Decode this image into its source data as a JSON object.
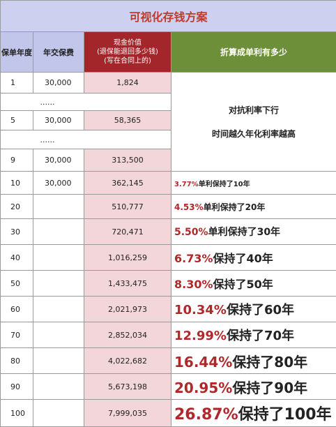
{
  "title": "可视化存钱方案",
  "header": {
    "year": "保单年度",
    "premium": "年交保费",
    "cash": [
      "现金价值",
      "(退保能退回多少钱)",
      "(写在合同上的)"
    ],
    "rate": "折算成单利有多少"
  },
  "rows": [
    {
      "year": "1",
      "premium": "30,000",
      "cash": "1,824"
    },
    {
      "dots": "......"
    },
    {
      "year": "5",
      "premium": "30,000",
      "cash": "58,365"
    },
    {
      "dots": "......"
    },
    {
      "year": "9",
      "premium": "30,000",
      "cash": "313,500"
    },
    {
      "year": "10",
      "premium": "30,000",
      "cash": "362,145",
      "rate": "3.77%",
      "note": "单利保持了10年"
    },
    {
      "year": "20",
      "cash": "510,777",
      "rate": "4.53%",
      "note": "单利保持了20年"
    },
    {
      "year": "30",
      "cash": "720,471",
      "rate": "5.50%",
      "note": "单利保持了30年"
    },
    {
      "year": "40",
      "cash": "1,016,259",
      "rate": "6.73%",
      "note": "保持了40年"
    },
    {
      "year": "50",
      "cash": "1,433,475",
      "rate": "8.30%",
      "note": "保持了50年"
    },
    {
      "year": "60",
      "cash": "2,021,973",
      "rate": "10.34%",
      "note": "保持了60年"
    },
    {
      "year": "70",
      "cash": "2,852,034",
      "rate": "12.99%",
      "note": "保持了70年"
    },
    {
      "year": "80",
      "cash": "4,022,682",
      "rate": "16.44%",
      "note": "保持了80年"
    },
    {
      "year": "90",
      "cash": "5,673,198",
      "rate": "20.95%",
      "note": "保持了90年"
    },
    {
      "year": "100",
      "cash": "7,999,035",
      "rate": "26.87%",
      "note": "保持了100年"
    }
  ],
  "merged_note": [
    "对抗利率下行",
    "时间越久年化利率越高"
  ]
}
